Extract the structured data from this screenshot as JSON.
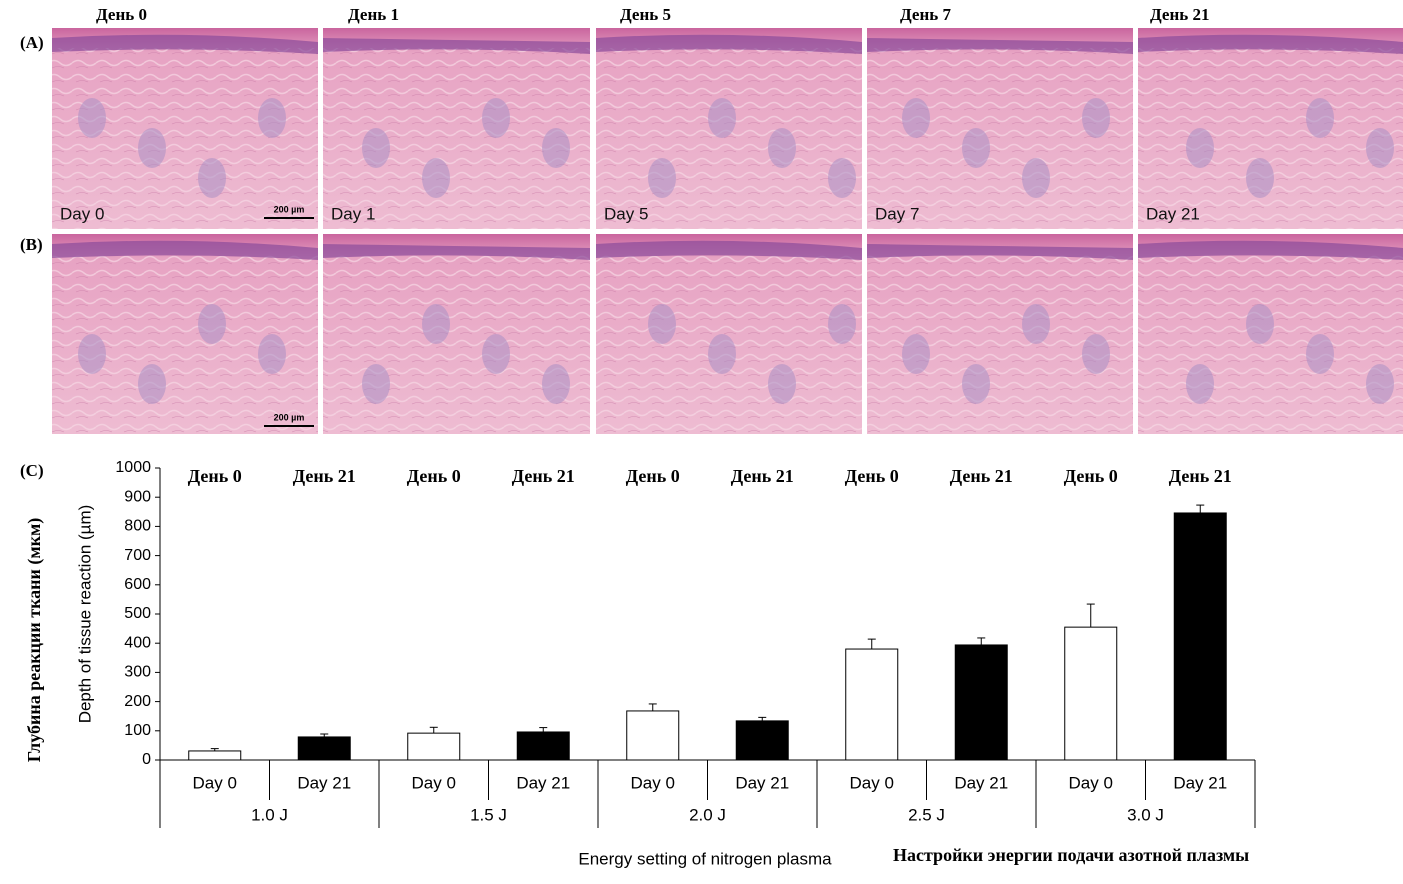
{
  "panel_labels": [
    "(A)",
    "(B)",
    "(C)"
  ],
  "image_headers": [
    "День 0",
    "День 1",
    "День 5",
    "День 7",
    "День 21"
  ],
  "image_captions": [
    "Day 0",
    "Day 1",
    "Day 5",
    "Day 7",
    "Day 21"
  ],
  "scale_bar_labels": [
    "200 µm",
    "200 µm"
  ],
  "chart_data": {
    "type": "bar",
    "y_label": "Depth of tissue reaction (µm)",
    "y_label_translation": "Глубина реакции ткани (мкм)",
    "x_label": "Energy setting of nitrogen plasma",
    "x_label_translation": "Настройки энергии подачи азотной плазмы",
    "groups": [
      "1.0 J",
      "1.5 J",
      "2.0 J",
      "2.5 J",
      "3.0 J"
    ],
    "categories": [
      "Day 0",
      "Day 21",
      "Day 0",
      "Day 21",
      "Day 0",
      "Day 21",
      "Day 0",
      "Day 21",
      "Day 0",
      "Day 21"
    ],
    "category_headers": [
      "День 0",
      "День 21",
      "День 0",
      "День 21",
      "День 0",
      "День 21",
      "День 0",
      "День 21",
      "День 0",
      "День 21"
    ],
    "values": [
      31,
      79,
      92,
      96,
      168,
      134,
      380,
      394,
      455,
      846
    ],
    "errors": [
      8,
      10,
      20,
      15,
      24,
      12,
      34,
      24,
      79,
      27
    ],
    "colors": [
      "#ffffff",
      "#000000",
      "#ffffff",
      "#000000",
      "#ffffff",
      "#000000",
      "#ffffff",
      "#000000",
      "#ffffff",
      "#000000"
    ],
    "ylim": [
      0,
      1000
    ],
    "yticks": [
      0,
      100,
      200,
      300,
      400,
      500,
      600,
      700,
      800,
      900,
      1000
    ]
  }
}
